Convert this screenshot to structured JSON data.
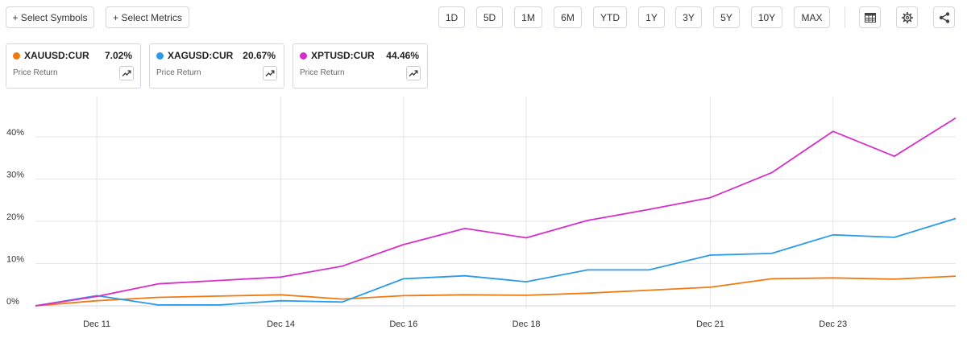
{
  "toolbar": {
    "select_symbols": "+ Select Symbols",
    "select_metrics": "+ Select Metrics",
    "ranges": [
      "1D",
      "5D",
      "1M",
      "6M",
      "YTD",
      "1Y",
      "3Y",
      "5Y",
      "10Y",
      "MAX"
    ],
    "icons": [
      "table-icon",
      "gear-icon",
      "share-icon"
    ]
  },
  "cards": [
    {
      "symbol": "XAUUSD:CUR",
      "value": "7.02%",
      "metric": "Price Return",
      "color": "#f07a12"
    },
    {
      "symbol": "XAGUSD:CUR",
      "value": "20.67%",
      "metric": "Price Return",
      "color": "#2b9be8"
    },
    {
      "symbol": "XPTUSD:CUR",
      "value": "44.46%",
      "metric": "Price Return",
      "color": "#d62fc9"
    }
  ],
  "chart_data": {
    "type": "line",
    "x_tick_labels": [
      "Dec 11",
      "Dec 14",
      "Dec 16",
      "Dec 18",
      "Dec 21",
      "Dec 23"
    ],
    "x_tick_index": [
      1,
      4,
      6,
      8,
      11,
      13
    ],
    "y_tick_labels": [
      "0%",
      "10%",
      "20%",
      "30%",
      "40%"
    ],
    "ylim": [
      0,
      48
    ],
    "grid": true,
    "series": [
      {
        "name": "XAUUSD:CUR",
        "color": "#f07a12",
        "values": [
          0,
          1.2,
          2.0,
          2.3,
          2.6,
          1.6,
          2.4,
          2.6,
          2.5,
          3.0,
          3.7,
          4.4,
          6.4,
          6.6,
          6.3,
          7.02
        ]
      },
      {
        "name": "XAGUSD:CUR",
        "color": "#2b9be8",
        "values": [
          0,
          2.4,
          0.2,
          0.2,
          1.2,
          0.9,
          6.4,
          7.1,
          5.7,
          8.5,
          8.5,
          12.0,
          12.4,
          16.8,
          16.2,
          20.67
        ]
      },
      {
        "name": "XPTUSD:CUR",
        "color": "#d62fc9",
        "values": [
          0,
          2.2,
          5.2,
          6.0,
          6.8,
          9.4,
          14.5,
          18.3,
          16.1,
          20.2,
          22.8,
          25.6,
          31.5,
          41.3,
          35.4,
          44.46
        ]
      }
    ]
  }
}
